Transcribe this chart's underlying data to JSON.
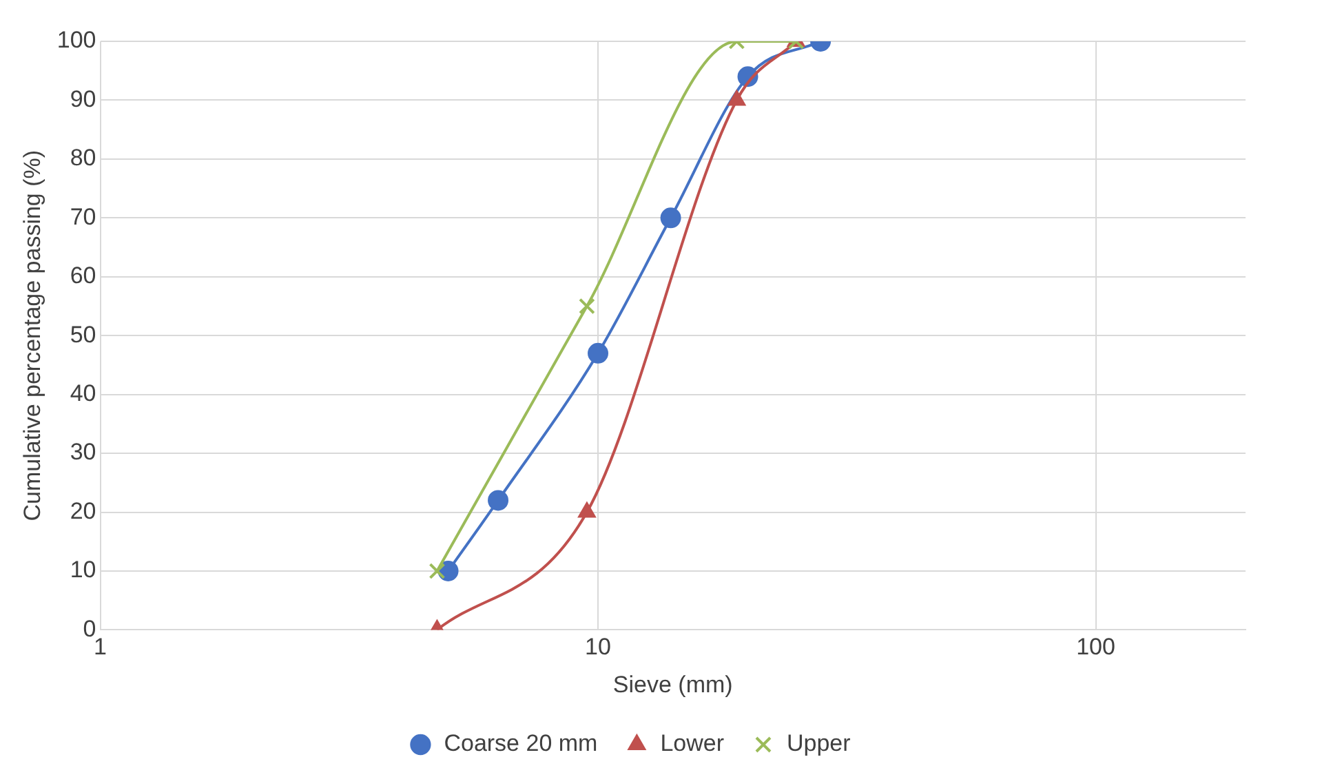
{
  "chart_data": {
    "type": "line",
    "xlabel": "Sieve (mm)",
    "ylabel": "Cumulative percentage passing (%)",
    "log": "x",
    "xlim": [
      1,
      200
    ],
    "xticks": [
      1,
      10,
      100
    ],
    "ylim": [
      0,
      100
    ],
    "yticks": [
      0,
      10,
      20,
      30,
      40,
      50,
      60,
      70,
      80,
      90,
      100
    ],
    "grid": true,
    "legend": "bottom",
    "series": [
      {
        "name": "Coarse 20 mm",
        "color": "#4472c4",
        "marker": "circle",
        "x": [
          5,
          6.3,
          10,
          14,
          20,
          28
        ],
        "values": [
          10,
          22,
          47,
          70,
          94,
          100
        ]
      },
      {
        "name": "Lower",
        "color": "#c0504d",
        "marker": "triangle",
        "x": [
          4.75,
          9.5,
          19,
          25
        ],
        "values": [
          0,
          20,
          90,
          100
        ]
      },
      {
        "name": "Upper",
        "color": "#9bbb59",
        "marker": "cross",
        "x": [
          4.75,
          9.5,
          19,
          25
        ],
        "values": [
          10,
          55,
          100,
          100
        ]
      }
    ]
  }
}
